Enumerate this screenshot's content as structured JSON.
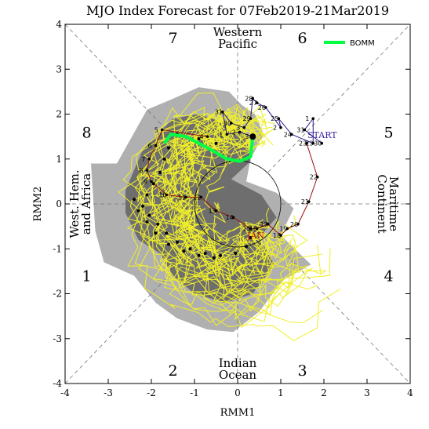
{
  "chart_data": {
    "type": "scatter",
    "title": "MJO Index Forecast for 07Feb2019-21Mar2019",
    "xlabel": "RMM1",
    "ylabel": "RMM2",
    "xlim": [
      -4,
      4
    ],
    "ylim": [
      -4,
      4
    ],
    "x_ticks": [
      "-4",
      "-3",
      "-2",
      "-1",
      "0",
      "1",
      "2",
      "3",
      "4"
    ],
    "y_ticks": [
      "-4",
      "-3",
      "-2",
      "-1",
      "0",
      "1",
      "2",
      "3",
      "4"
    ],
    "phase_labels": [
      {
        "label": "1",
        "x": -3.5,
        "y": -1.6
      },
      {
        "label": "2",
        "x": -1.5,
        "y": -3.7
      },
      {
        "label": "3",
        "x": 1.5,
        "y": -3.7
      },
      {
        "label": "4",
        "x": 3.5,
        "y": -1.6
      },
      {
        "label": "5",
        "x": 3.5,
        "y": 1.6
      },
      {
        "label": "6",
        "x": 1.5,
        "y": 3.7
      },
      {
        "label": "7",
        "x": -1.5,
        "y": 3.7
      },
      {
        "label": "8",
        "x": -3.5,
        "y": 1.6
      }
    ],
    "region_labels": {
      "top": [
        "Western",
        "Pacific"
      ],
      "bottom": [
        "Indian",
        "Ocean"
      ],
      "left": [
        "West. Hem.",
        "and Africa"
      ],
      "right": [
        "Maritime",
        "Continent"
      ]
    },
    "legend": {
      "label": "BOMM",
      "color": "#00ff44",
      "position": "top-right"
    },
    "start_label": "START",
    "jan_label": "JAN",
    "colors": {
      "observed_feb": "#2a1a8c",
      "observed_jan": "#9a1010",
      "ensemble": "#f0ef2a",
      "spread_outer": "#b0b0b0",
      "spread_inner": "#6e6e6e",
      "ensemble_mean": "#00ff44"
    },
    "observed_feb": [
      {
        "day": "30",
        "x": 1.95,
        "y": 1.35
      },
      {
        "day": "31",
        "x": 1.55,
        "y": 1.65
      },
      {
        "day": "1",
        "x": 1.75,
        "y": 1.9
      },
      {
        "day": "23",
        "x": 1.75,
        "y": 1.35
      },
      {
        "day": "24",
        "x": 1.25,
        "y": 1.55
      },
      {
        "day": "25",
        "x": 0.95,
        "y": 1.9
      },
      {
        "day": "2",
        "x": 1.0,
        "y": 1.7
      },
      {
        "day": "26",
        "x": 0.65,
        "y": 2.15
      },
      {
        "day": "27",
        "x": 0.45,
        "y": 2.25
      },
      {
        "day": "28",
        "x": 0.35,
        "y": 2.35
      },
      {
        "day": "29",
        "x": 0.3,
        "y": 1.9
      },
      {
        "day": "3",
        "x": 0.15,
        "y": 1.7
      },
      {
        "day": "30",
        "x": -0.15,
        "y": 1.8
      },
      {
        "day": "31",
        "x": -0.35,
        "y": 2.05
      },
      {
        "day": "1",
        "x": -0.25,
        "y": 1.55
      },
      {
        "day": "2",
        "x": 0.05,
        "y": 1.6
      },
      {
        "day": "3",
        "x": 0.35,
        "y": 1.5
      }
    ],
    "observed_jan": [
      {
        "day": "4",
        "x": -0.7,
        "y": 1.5
      },
      {
        "day": "5",
        "x": -1.75,
        "y": 1.65
      },
      {
        "day": "6",
        "x": -1.9,
        "y": 1.3
      },
      {
        "day": "7",
        "x": -2.05,
        "y": 1.0
      },
      {
        "day": "8",
        "x": -2.1,
        "y": 0.75
      },
      {
        "day": "9",
        "x": -2.0,
        "y": 0.5
      },
      {
        "day": "10",
        "x": -1.65,
        "y": 0.2
      },
      {
        "day": "11",
        "x": -1.2,
        "y": 0.15
      },
      {
        "day": "12",
        "x": -0.85,
        "y": 0.15
      },
      {
        "day": "13",
        "x": -0.5,
        "y": -0.15
      },
      {
        "day": "14",
        "x": -0.1,
        "y": -0.3
      },
      {
        "day": "15",
        "x": 0.3,
        "y": -0.55
      },
      {
        "day": "16",
        "x": 0.45,
        "y": -0.55
      },
      {
        "day": "17",
        "x": 0.7,
        "y": -0.45
      },
      {
        "day": "18",
        "x": 1.0,
        "y": -0.7
      },
      {
        "day": "19",
        "x": 1.15,
        "y": -0.55
      },
      {
        "day": "20",
        "x": 1.4,
        "y": -0.45
      },
      {
        "day": "21",
        "x": 1.65,
        "y": 0.05
      },
      {
        "day": "22",
        "x": 1.85,
        "y": 0.6
      },
      {
        "day": "23",
        "x": 1.6,
        "y": 1.35
      }
    ],
    "ensemble_mean": [
      {
        "x": 0.35,
        "y": 1.5
      },
      {
        "x": 0.3,
        "y": 1.05
      },
      {
        "x": 0.05,
        "y": 0.95
      },
      {
        "x": -0.25,
        "y": 1.0
      },
      {
        "x": -0.7,
        "y": 1.25
      },
      {
        "x": -1.2,
        "y": 1.5
      },
      {
        "x": -1.55,
        "y": 1.55
      },
      {
        "x": -1.7,
        "y": 1.35
      }
    ],
    "forecast_dots": [
      {
        "x": 0.35,
        "y": 1.5
      },
      {
        "x": -0.5,
        "y": 1.35
      },
      {
        "x": -0.9,
        "y": 1.45
      },
      {
        "x": -1.4,
        "y": 1.55
      },
      {
        "x": -1.6,
        "y": 1.25
      },
      {
        "x": -1.7,
        "y": 1.0
      },
      {
        "x": -1.8,
        "y": 0.7
      },
      {
        "x": -1.95,
        "y": 0.45
      },
      {
        "x": -2.1,
        "y": 0.2
      },
      {
        "x": -2.2,
        "y": -0.05
      },
      {
        "x": -2.05,
        "y": -0.25
      },
      {
        "x": -1.85,
        "y": -0.45
      },
      {
        "x": -1.65,
        "y": -0.65
      },
      {
        "x": -1.4,
        "y": -0.85
      },
      {
        "x": -1.1,
        "y": -1.0
      },
      {
        "x": -0.75,
        "y": -1.1
      },
      {
        "x": -0.4,
        "y": -1.15
      },
      {
        "x": -0.05,
        "y": -1.1
      },
      {
        "x": 0.2,
        "y": -0.95
      },
      {
        "x": 0.3,
        "y": -0.75
      },
      {
        "x": -2.4,
        "y": 0.1
      },
      {
        "x": -2.3,
        "y": -0.15
      },
      {
        "x": -2.1,
        "y": -0.4
      },
      {
        "x": -1.9,
        "y": -0.65
      },
      {
        "x": -1.6,
        "y": -0.9
      },
      {
        "x": -1.25,
        "y": -1.05
      },
      {
        "x": -0.9,
        "y": -1.15
      },
      {
        "x": -0.55,
        "y": -1.2
      }
    ]
  }
}
